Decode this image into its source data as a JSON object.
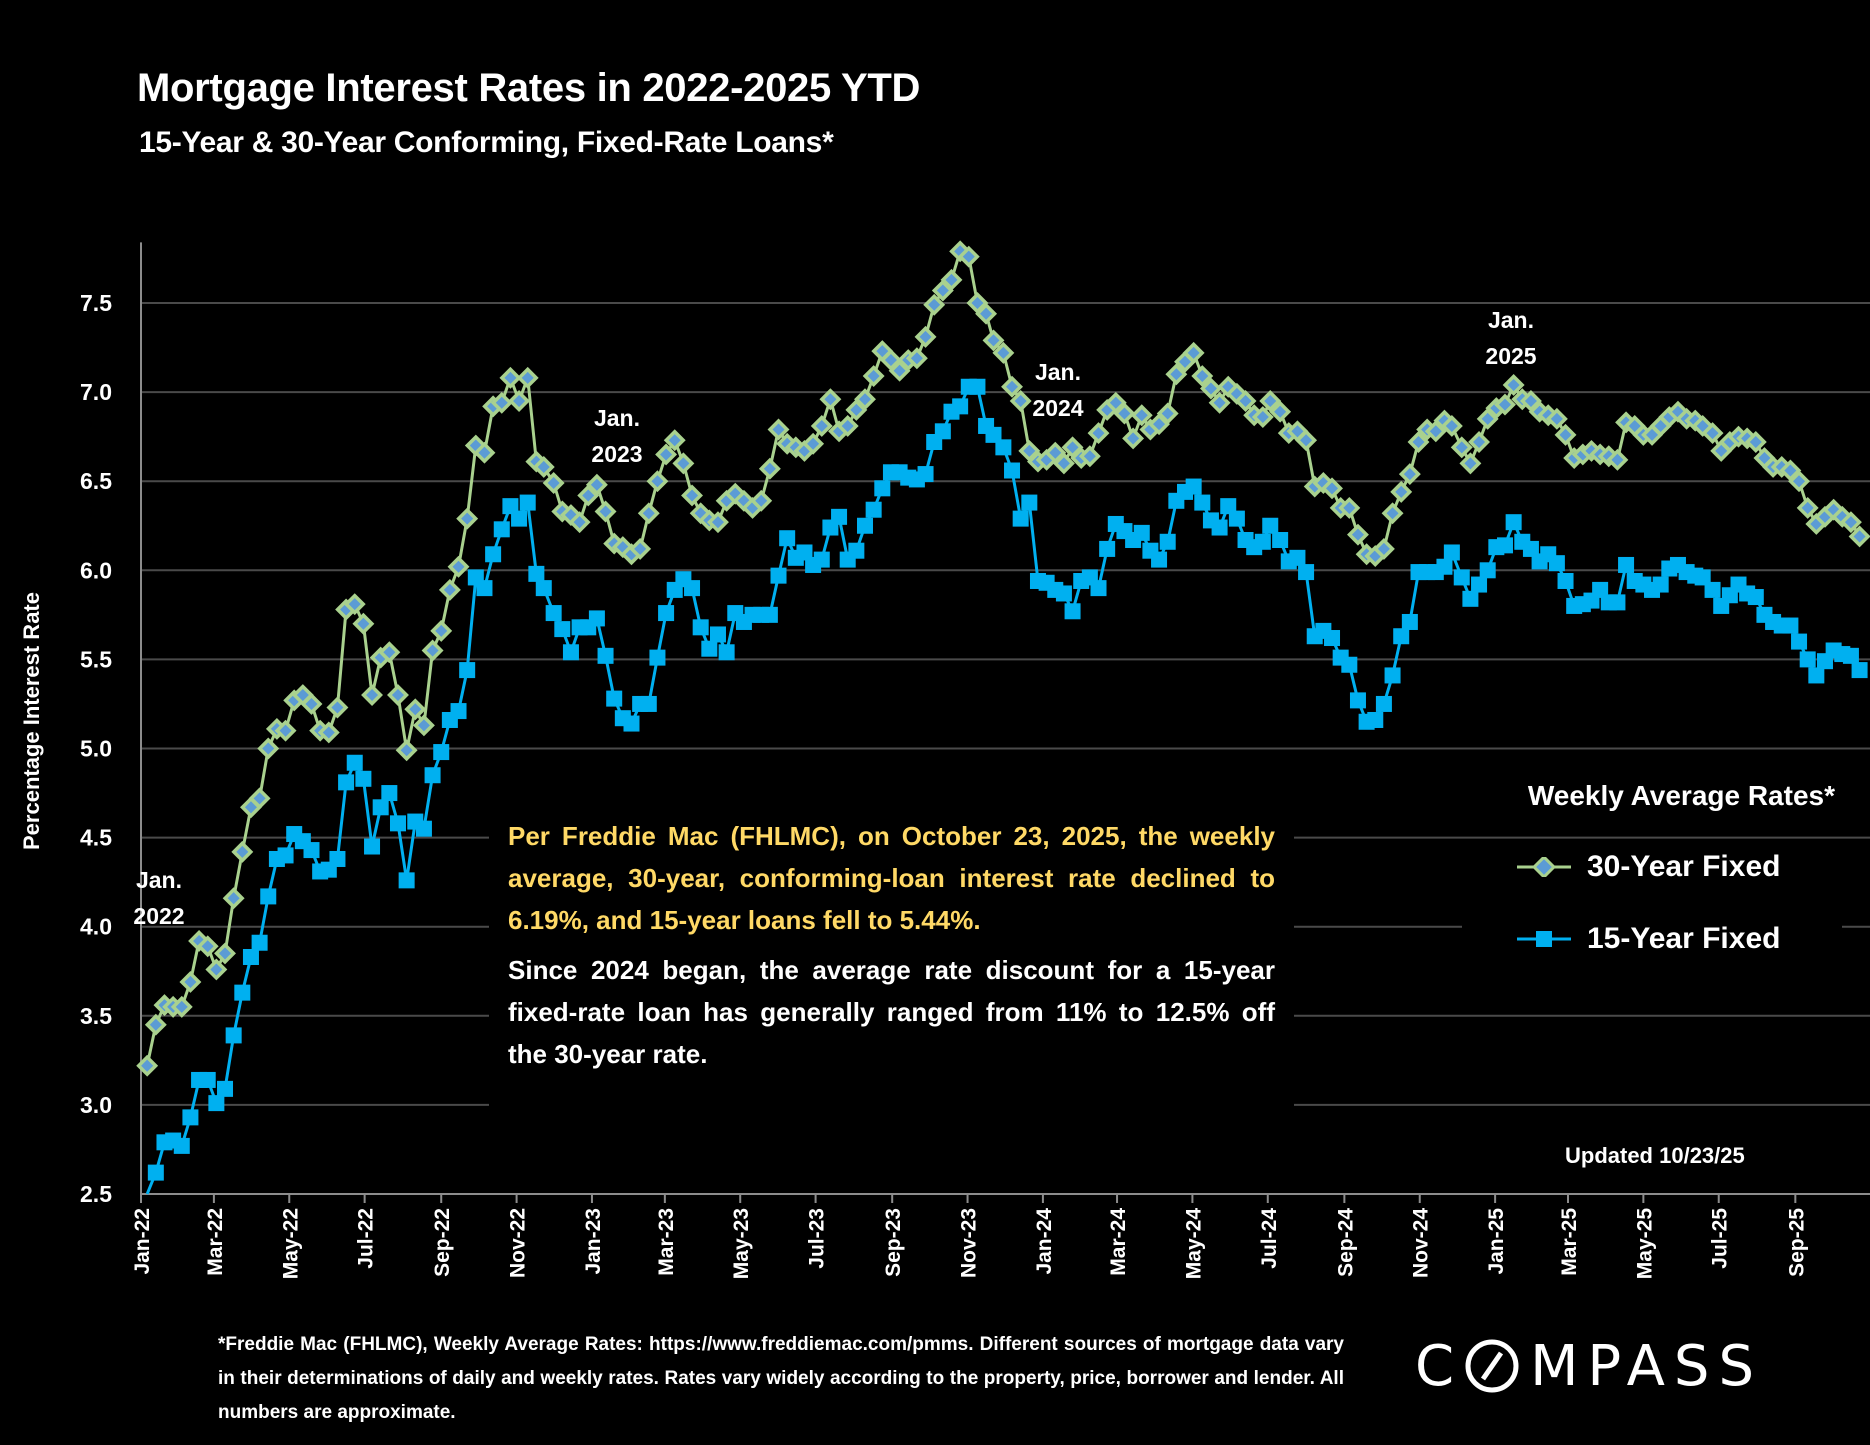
{
  "title": "Mortgage Interest Rates in 2022-2025 YTD",
  "subtitle": "15-Year & 30-Year Conforming, Fixed-Rate Loans*",
  "annotations": {
    "jan2022": [
      "Jan.",
      "2022"
    ],
    "jan2023": [
      "Jan.",
      "2023"
    ],
    "jan2024": [
      "Jan.",
      "2024"
    ],
    "jan2025": [
      "Jan.",
      "2025"
    ]
  },
  "textbox": {
    "p1": "Per Freddie Mac (FHLMC), on October 23, 2025, the weekly average, 30-year, conforming-loan interest rate declined to 6.19%, and 15-year loans fell to 5.44%.",
    "p2": "Since 2024 began, the average rate discount for a 15-year fixed-rate loan has generally ranged from 11% to 12.5% off the 30-year rate."
  },
  "updated": "Updated 10/23/25",
  "footnote": "*Freddie Mac (FHLMC), Weekly Average Rates:  https://www.freddiemac.com/pmms. Different sources of mortgage data vary in their determinations of daily and weekly rates. Rates vary widely according to the property, price, borrower and lender.  All numbers are approximate.",
  "logo": "COMPASS",
  "chart_data": {
    "type": "line",
    "title": "Mortgage Interest Rates in 2022-2025 YTD",
    "ylabel": "Percentage Interest  Rate",
    "xlabel": "",
    "ylim": [
      2.5,
      7.84
    ],
    "yticks": [
      "2.5",
      "3.0",
      "3.5",
      "4.0",
      "4.5",
      "5.0",
      "5.5",
      "6.0",
      "6.5",
      "7.0",
      "7.5"
    ],
    "xticks": [
      "Jan-22",
      "Mar-22",
      "May-22",
      "Jul-22",
      "Sep-22",
      "Nov-22",
      "Jan-23",
      "Mar-23",
      "May-23",
      "Jul-23",
      "Sep-23",
      "Nov-23",
      "Jan-24",
      "Mar-24",
      "May-24",
      "Jul-24",
      "Sep-24",
      "Nov-24",
      "Jan-25",
      "Mar-25",
      "May-25",
      "Jul-25",
      "Sep-25"
    ],
    "grid": true,
    "legend": {
      "title": "Weekly Average Rates*",
      "placement": "right"
    },
    "colors": {
      "line30": "#A9D18E",
      "marker30_fill": "#5B9BD5",
      "line15": "#00B0F0",
      "grid": "#4A4A4A",
      "axis": "#8C8C8C",
      "textbox_text": "#FFD966"
    },
    "x": [
      "2022-01-06",
      "2022-01-13",
      "2022-01-20",
      "2022-01-27",
      "2022-02-03",
      "2022-02-10",
      "2022-02-17",
      "2022-02-24",
      "2022-03-03",
      "2022-03-10",
      "2022-03-17",
      "2022-03-24",
      "2022-03-31",
      "2022-04-07",
      "2022-04-14",
      "2022-04-21",
      "2022-04-28",
      "2022-05-05",
      "2022-05-12",
      "2022-05-19",
      "2022-05-26",
      "2022-06-02",
      "2022-06-09",
      "2022-06-16",
      "2022-06-23",
      "2022-06-30",
      "2022-07-07",
      "2022-07-14",
      "2022-07-21",
      "2022-07-28",
      "2022-08-04",
      "2022-08-11",
      "2022-08-18",
      "2022-08-25",
      "2022-09-01",
      "2022-09-08",
      "2022-09-15",
      "2022-09-22",
      "2022-09-29",
      "2022-10-06",
      "2022-10-13",
      "2022-10-20",
      "2022-10-27",
      "2022-11-03",
      "2022-11-10",
      "2022-11-17",
      "2022-11-23",
      "2022-12-01",
      "2022-12-08",
      "2022-12-15",
      "2022-12-22",
      "2022-12-29",
      "2023-01-05",
      "2023-01-12",
      "2023-01-19",
      "2023-01-26",
      "2023-02-02",
      "2023-02-09",
      "2023-02-16",
      "2023-02-23",
      "2023-03-02",
      "2023-03-09",
      "2023-03-16",
      "2023-03-23",
      "2023-03-30",
      "2023-04-06",
      "2023-04-13",
      "2023-04-20",
      "2023-04-27",
      "2023-05-04",
      "2023-05-11",
      "2023-05-18",
      "2023-05-25",
      "2023-06-01",
      "2023-06-08",
      "2023-06-15",
      "2023-06-22",
      "2023-06-29",
      "2023-07-06",
      "2023-07-13",
      "2023-07-20",
      "2023-07-27",
      "2023-08-03",
      "2023-08-10",
      "2023-08-17",
      "2023-08-24",
      "2023-08-31",
      "2023-09-07",
      "2023-09-14",
      "2023-09-21",
      "2023-09-28",
      "2023-10-05",
      "2023-10-12",
      "2023-10-19",
      "2023-10-26",
      "2023-11-02",
      "2023-11-09",
      "2023-11-16",
      "2023-11-22",
      "2023-11-30",
      "2023-12-07",
      "2023-12-14",
      "2023-12-21",
      "2023-12-28",
      "2024-01-04",
      "2024-01-11",
      "2024-01-18",
      "2024-01-25",
      "2024-02-01",
      "2024-02-08",
      "2024-02-15",
      "2024-02-22",
      "2024-02-29",
      "2024-03-07",
      "2024-03-14",
      "2024-03-21",
      "2024-03-28",
      "2024-04-04",
      "2024-04-11",
      "2024-04-18",
      "2024-04-25",
      "2024-05-02",
      "2024-05-09",
      "2024-05-16",
      "2024-05-23",
      "2024-05-30",
      "2024-06-06",
      "2024-06-13",
      "2024-06-20",
      "2024-06-27",
      "2024-07-03",
      "2024-07-11",
      "2024-07-18",
      "2024-07-25",
      "2024-08-01",
      "2024-08-08",
      "2024-08-15",
      "2024-08-22",
      "2024-08-29",
      "2024-09-05",
      "2024-09-12",
      "2024-09-19",
      "2024-09-26",
      "2024-10-03",
      "2024-10-10",
      "2024-10-17",
      "2024-10-24",
      "2024-10-31",
      "2024-11-07",
      "2024-11-14",
      "2024-11-21",
      "2024-11-27",
      "2024-12-05",
      "2024-12-12",
      "2024-12-19",
      "2024-12-26",
      "2025-01-02",
      "2025-01-09",
      "2025-01-16",
      "2025-01-23",
      "2025-01-30",
      "2025-02-06",
      "2025-02-13",
      "2025-02-20",
      "2025-02-27",
      "2025-03-06",
      "2025-03-13",
      "2025-03-20",
      "2025-03-27",
      "2025-04-03",
      "2025-04-10",
      "2025-04-17",
      "2025-04-24",
      "2025-05-01",
      "2025-05-08",
      "2025-05-15",
      "2025-05-22",
      "2025-05-29",
      "2025-06-05",
      "2025-06-12",
      "2025-06-18",
      "2025-06-26",
      "2025-07-03",
      "2025-07-10",
      "2025-07-17",
      "2025-07-24",
      "2025-07-31",
      "2025-08-07",
      "2025-08-14",
      "2025-08-21",
      "2025-08-28",
      "2025-09-04",
      "2025-09-11",
      "2025-09-18",
      "2025-09-25",
      "2025-10-02",
      "2025-10-09",
      "2025-10-16",
      "2025-10-23"
    ],
    "series": [
      {
        "name": "30-Year Fixed",
        "marker": "diamond",
        "values": [
          3.22,
          3.45,
          3.56,
          3.55,
          3.55,
          3.69,
          3.92,
          3.89,
          3.76,
          3.85,
          4.16,
          4.42,
          4.67,
          4.72,
          5.0,
          5.11,
          5.1,
          5.27,
          5.3,
          5.25,
          5.1,
          5.09,
          5.23,
          5.78,
          5.81,
          5.7,
          5.3,
          5.51,
          5.54,
          5.3,
          4.99,
          5.22,
          5.13,
          5.55,
          5.66,
          5.89,
          6.02,
          6.29,
          6.7,
          6.66,
          6.92,
          6.94,
          7.08,
          6.95,
          7.08,
          6.61,
          6.58,
          6.49,
          6.33,
          6.31,
          6.27,
          6.42,
          6.48,
          6.33,
          6.15,
          6.13,
          6.09,
          6.12,
          6.32,
          6.5,
          6.65,
          6.73,
          6.6,
          6.42,
          6.32,
          6.28,
          6.27,
          6.39,
          6.43,
          6.39,
          6.35,
          6.39,
          6.57,
          6.79,
          6.71,
          6.69,
          6.67,
          6.71,
          6.81,
          6.96,
          6.78,
          6.81,
          6.9,
          6.96,
          7.09,
          7.23,
          7.18,
          7.12,
          7.18,
          7.19,
          7.31,
          7.49,
          7.57,
          7.63,
          7.79,
          7.76,
          7.5,
          7.44,
          7.29,
          7.22,
          7.03,
          6.95,
          6.67,
          6.61,
          6.62,
          6.66,
          6.6,
          6.69,
          6.63,
          6.64,
          6.77,
          6.9,
          6.94,
          6.88,
          6.74,
          6.87,
          6.79,
          6.82,
          6.88,
          7.1,
          7.17,
          7.22,
          7.09,
          7.02,
          6.94,
          7.03,
          6.99,
          6.95,
          6.87,
          6.86,
          6.95,
          6.89,
          6.77,
          6.78,
          6.73,
          6.47,
          6.49,
          6.46,
          6.35,
          6.35,
          6.2,
          6.09,
          6.08,
          6.12,
          6.32,
          6.44,
          6.54,
          6.72,
          6.79,
          6.78,
          6.84,
          6.81,
          6.69,
          6.6,
          6.72,
          6.85,
          6.91,
          6.93,
          7.04,
          6.96,
          6.95,
          6.89,
          6.87,
          6.85,
          6.76,
          6.63,
          6.65,
          6.67,
          6.65,
          6.64,
          6.62,
          6.83,
          6.81,
          6.76,
          6.76,
          6.81,
          6.86,
          6.89,
          6.85,
          6.84,
          6.81,
          6.77,
          6.67,
          6.72,
          6.75,
          6.74,
          6.72,
          6.63,
          6.58,
          6.58,
          6.56,
          6.5,
          6.35,
          6.26,
          6.3,
          6.34,
          6.3,
          6.27,
          6.19
        ]
      },
      {
        "name": "15-Year Fixed",
        "marker": "square",
        "values": [
          2.43,
          2.62,
          2.79,
          2.8,
          2.77,
          2.93,
          3.14,
          3.14,
          3.01,
          3.09,
          3.39,
          3.63,
          3.83,
          3.91,
          4.17,
          4.38,
          4.4,
          4.52,
          4.48,
          4.43,
          4.31,
          4.32,
          4.38,
          4.81,
          4.92,
          4.83,
          4.45,
          4.67,
          4.75,
          4.58,
          4.26,
          4.59,
          4.55,
          4.85,
          4.98,
          5.16,
          5.21,
          5.44,
          5.96,
          5.9,
          6.09,
          6.23,
          6.36,
          6.29,
          6.38,
          5.98,
          5.9,
          5.76,
          5.67,
          5.54,
          5.68,
          5.68,
          5.73,
          5.52,
          5.28,
          5.17,
          5.14,
          5.25,
          5.25,
          5.51,
          5.76,
          5.89,
          5.95,
          5.9,
          5.68,
          5.56,
          5.64,
          5.54,
          5.76,
          5.71,
          5.75,
          5.75,
          5.75,
          5.97,
          6.18,
          6.07,
          6.1,
          6.03,
          6.06,
          6.24,
          6.3,
          6.06,
          6.11,
          6.25,
          6.34,
          6.46,
          6.55,
          6.55,
          6.52,
          6.51,
          6.54,
          6.72,
          6.78,
          6.89,
          6.92,
          7.03,
          7.03,
          6.81,
          6.76,
          6.69,
          6.56,
          6.29,
          6.38,
          5.94,
          5.93,
          5.89,
          5.87,
          5.77,
          5.94,
          5.96,
          5.9,
          6.12,
          6.26,
          6.22,
          6.17,
          6.21,
          6.11,
          6.06,
          6.16,
          6.39,
          6.44,
          6.47,
          6.38,
          6.28,
          6.24,
          6.36,
          6.29,
          6.17,
          6.13,
          6.16,
          6.25,
          6.17,
          6.05,
          6.07,
          5.99,
          5.63,
          5.66,
          5.62,
          5.51,
          5.47,
          5.27,
          5.15,
          5.16,
          5.25,
          5.41,
          5.63,
          5.71,
          5.99,
          5.99,
          5.99,
          6.02,
          6.1,
          5.96,
          5.84,
          5.92,
          6.0,
          6.13,
          6.14,
          6.27,
          6.16,
          6.12,
          6.05,
          6.09,
          6.04,
          5.94,
          5.8,
          5.81,
          5.83,
          5.89,
          5.82,
          5.82,
          6.03,
          5.94,
          5.92,
          5.89,
          5.92,
          6.01,
          6.03,
          5.99,
          5.97,
          5.96,
          5.89,
          5.8,
          5.86,
          5.92,
          5.87,
          5.85,
          5.75,
          5.71,
          5.69,
          5.69,
          5.6,
          5.5,
          5.41,
          5.49,
          5.55,
          5.53,
          5.52,
          5.44
        ]
      }
    ]
  }
}
